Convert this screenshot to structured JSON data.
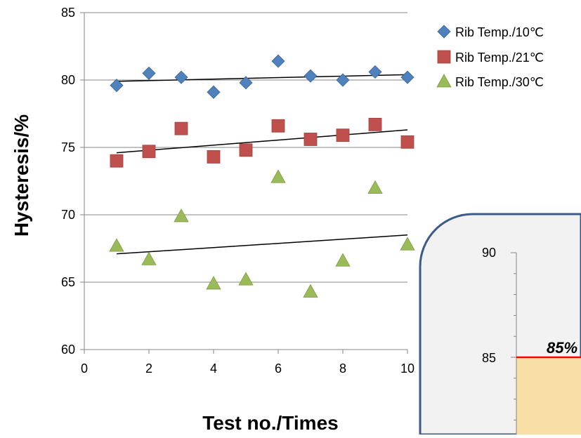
{
  "chart_data": [
    {
      "type": "scatter",
      "title": "",
      "xlabel": "Test no./Times",
      "ylabel": "Hysteresis/%",
      "xlim": [
        0,
        10
      ],
      "ylim": [
        60,
        85
      ],
      "x_ticks": [
        "0",
        "2",
        "4",
        "6",
        "8",
        "10"
      ],
      "y_ticks": [
        "60",
        "65",
        "70",
        "75",
        "80",
        "85"
      ],
      "grid": "horizontal",
      "legend_position": "top-right",
      "series": [
        {
          "name": "Rib Temp./10℃",
          "marker": "diamond",
          "color": "#4f81bd",
          "x": [
            1,
            2,
            3,
            4,
            5,
            6,
            7,
            8,
            9,
            10
          ],
          "y": [
            79.6,
            80.5,
            80.2,
            79.1,
            79.8,
            81.4,
            80.3,
            80.0,
            80.6,
            80.2
          ],
          "trendline": {
            "x": [
              1,
              10
            ],
            "y": [
              79.9,
              80.4
            ]
          }
        },
        {
          "name": "Rib Temp./21℃",
          "marker": "square",
          "color": "#c0504d",
          "x": [
            1,
            2,
            3,
            4,
            5,
            6,
            7,
            8,
            9,
            10
          ],
          "y": [
            74.0,
            74.7,
            76.4,
            74.3,
            74.8,
            76.6,
            75.6,
            75.9,
            76.7,
            75.4
          ],
          "trendline": {
            "x": [
              1,
              10
            ],
            "y": [
              74.6,
              76.3
            ]
          }
        },
        {
          "name": "Rib Temp./30℃",
          "marker": "triangle",
          "color": "#9bbb59",
          "x": [
            1,
            2,
            3,
            4,
            5,
            6,
            7,
            8,
            9,
            10
          ],
          "y": [
            67.7,
            66.7,
            69.9,
            64.9,
            65.2,
            72.8,
            64.3,
            66.6,
            72.0,
            67.8
          ],
          "trendline": {
            "x": [
              1,
              10
            ],
            "y": [
              67.1,
              68.5
            ]
          }
        }
      ]
    },
    {
      "type": "bar",
      "title": "",
      "y_ticks": [
        "85",
        "90"
      ],
      "reference_line": {
        "value": 85,
        "label": "85%",
        "color": "#ff0000"
      },
      "fill_color": "#f7dfa6"
    }
  ]
}
